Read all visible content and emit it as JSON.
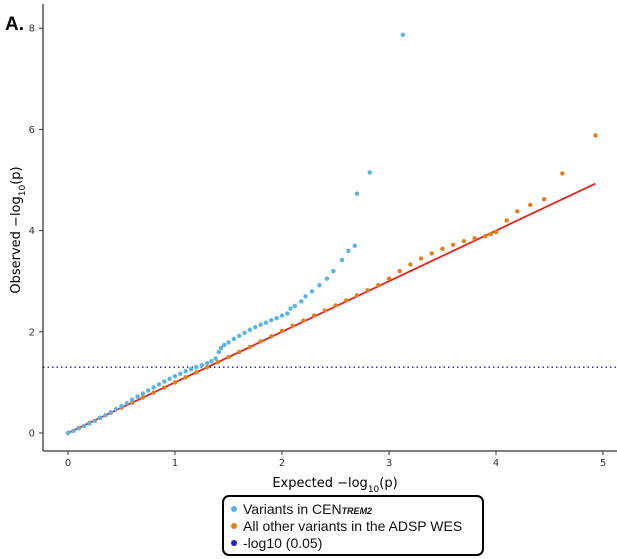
{
  "panel_label": "A.",
  "legend": {
    "items": [
      {
        "label_main": "Variants in CEN",
        "label_sub": "TREM2",
        "color": "#56b4e9"
      },
      {
        "label_main": "All other variants in the ADSP WES",
        "label_sub": "",
        "color": "#e87e1a"
      },
      {
        "label_main": "-log10 (0.05)",
        "label_sub": "",
        "color": "#1a1ad6"
      }
    ]
  },
  "chart_data": {
    "type": "scatter",
    "xlabel_main": "Expected  −log",
    "xlabel_sub": "10",
    "xlabel_tail": "(p)",
    "ylabel_main": "Observed  −log",
    "ylabel_sub": "10",
    "ylabel_tail": "(p)",
    "xlim": [
      -0.5,
      5.2
    ],
    "ylim": [
      -0.15,
      8.4
    ],
    "x_ticks": [
      0,
      1,
      2,
      3,
      4,
      5
    ],
    "y_ticks": [
      0,
      2,
      4,
      6,
      8
    ],
    "reference_line": {
      "name": "y = x",
      "color": "#e8231a",
      "x": [
        0,
        4.93
      ],
      "y": [
        0,
        4.93
      ]
    },
    "threshold_line": {
      "label": "-log10 (0.05)",
      "y": 1.301,
      "color": "#1a1ad6",
      "style": "dotted"
    },
    "series": [
      {
        "name": "Variants in CEN TREM2",
        "color": "#56b4e9",
        "points": [
          [
            0.0,
            0.0
          ],
          [
            0.05,
            0.04
          ],
          [
            0.1,
            0.09
          ],
          [
            0.15,
            0.14
          ],
          [
            0.2,
            0.19
          ],
          [
            0.25,
            0.24
          ],
          [
            0.3,
            0.3
          ],
          [
            0.35,
            0.35
          ],
          [
            0.4,
            0.41
          ],
          [
            0.45,
            0.47
          ],
          [
            0.5,
            0.53
          ],
          [
            0.55,
            0.59
          ],
          [
            0.6,
            0.66
          ],
          [
            0.65,
            0.72
          ],
          [
            0.7,
            0.78
          ],
          [
            0.75,
            0.84
          ],
          [
            0.8,
            0.9
          ],
          [
            0.85,
            0.96
          ],
          [
            0.9,
            1.02
          ],
          [
            0.95,
            1.07
          ],
          [
            1.0,
            1.12
          ],
          [
            1.05,
            1.17
          ],
          [
            1.1,
            1.22
          ],
          [
            1.15,
            1.26
          ],
          [
            1.2,
            1.3
          ],
          [
            1.25,
            1.34
          ],
          [
            1.3,
            1.38
          ],
          [
            1.34,
            1.42
          ],
          [
            1.38,
            1.47
          ],
          [
            1.41,
            1.6
          ],
          [
            1.43,
            1.68
          ],
          [
            1.46,
            1.74
          ],
          [
            1.5,
            1.79
          ],
          [
            1.55,
            1.86
          ],
          [
            1.6,
            1.92
          ],
          [
            1.65,
            1.98
          ],
          [
            1.7,
            2.04
          ],
          [
            1.75,
            2.09
          ],
          [
            1.8,
            2.14
          ],
          [
            1.85,
            2.18
          ],
          [
            1.9,
            2.23
          ],
          [
            1.95,
            2.27
          ],
          [
            2.0,
            2.32
          ],
          [
            2.05,
            2.36
          ],
          [
            2.08,
            2.46
          ],
          [
            2.12,
            2.51
          ],
          [
            2.18,
            2.6
          ],
          [
            2.22,
            2.7
          ],
          [
            2.28,
            2.8
          ],
          [
            2.35,
            2.92
          ],
          [
            2.42,
            3.05
          ],
          [
            2.48,
            3.2
          ],
          [
            2.56,
            3.42
          ],
          [
            2.62,
            3.6
          ],
          [
            2.68,
            3.7
          ],
          [
            2.7,
            4.73
          ],
          [
            2.82,
            5.15
          ],
          [
            3.13,
            7.87
          ]
        ]
      },
      {
        "name": "All other variants in the ADSP WES",
        "color": "#e87e1a",
        "points": [
          [
            0.0,
            0.0
          ],
          [
            0.1,
            0.1
          ],
          [
            0.2,
            0.2
          ],
          [
            0.3,
            0.3
          ],
          [
            0.4,
            0.4
          ],
          [
            0.5,
            0.5
          ],
          [
            0.6,
            0.6
          ],
          [
            0.7,
            0.7
          ],
          [
            0.8,
            0.8
          ],
          [
            0.9,
            0.9
          ],
          [
            1.0,
            1.0
          ],
          [
            1.1,
            1.1
          ],
          [
            1.2,
            1.2
          ],
          [
            1.3,
            1.3
          ],
          [
            1.4,
            1.4
          ],
          [
            1.5,
            1.5
          ],
          [
            1.6,
            1.6
          ],
          [
            1.7,
            1.7
          ],
          [
            1.8,
            1.81
          ],
          [
            1.9,
            1.91
          ],
          [
            2.0,
            2.02
          ],
          [
            2.1,
            2.12
          ],
          [
            2.2,
            2.22
          ],
          [
            2.3,
            2.32
          ],
          [
            2.4,
            2.42
          ],
          [
            2.5,
            2.52
          ],
          [
            2.6,
            2.62
          ],
          [
            2.7,
            2.72
          ],
          [
            2.8,
            2.82
          ],
          [
            2.9,
            2.92
          ],
          [
            3.0,
            3.05
          ],
          [
            3.1,
            3.2
          ],
          [
            3.2,
            3.33
          ],
          [
            3.3,
            3.45
          ],
          [
            3.4,
            3.55
          ],
          [
            3.5,
            3.64
          ],
          [
            3.6,
            3.72
          ],
          [
            3.7,
            3.79
          ],
          [
            3.8,
            3.85
          ],
          [
            3.9,
            3.89
          ],
          [
            3.95,
            3.93
          ],
          [
            4.0,
            3.97
          ],
          [
            4.1,
            4.2
          ],
          [
            4.2,
            4.38
          ],
          [
            4.32,
            4.51
          ],
          [
            4.45,
            4.62
          ],
          [
            4.62,
            5.13
          ],
          [
            4.93,
            5.88
          ]
        ]
      }
    ]
  }
}
